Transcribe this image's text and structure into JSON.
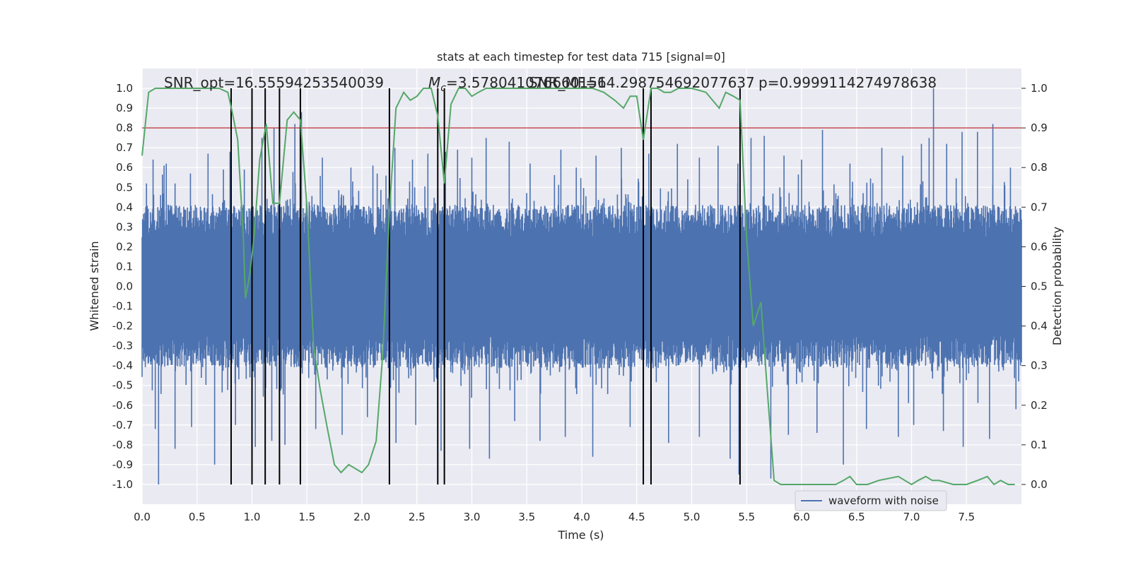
{
  "chart_data": {
    "type": "line",
    "title": "stats at each timestep for test data 715 [signal=0]",
    "xlabel": "Time (s)",
    "ylabel_left": "Whitened strain",
    "ylabel_right": "Detection probability",
    "xlim": [
      0.0,
      8.0
    ],
    "ylim_left": [
      -1.1,
      1.1
    ],
    "ylim_right": [
      -0.05,
      1.05
    ],
    "xticks": [
      "0.0",
      "0.5",
      "1.0",
      "1.5",
      "2.0",
      "2.5",
      "3.0",
      "3.5",
      "4.0",
      "4.5",
      "5.0",
      "5.5",
      "6.0",
      "6.5",
      "7.0",
      "7.5"
    ],
    "yticks_left": [
      "1.0",
      "0.9",
      "0.8",
      "0.7",
      "0.6",
      "0.5",
      "0.4",
      "0.3",
      "0.2",
      "0.1",
      "0.0",
      "-0.1",
      "-0.2",
      "-0.3",
      "-0.4",
      "-0.5",
      "-0.6",
      "-0.7",
      "-0.8",
      "-0.9",
      "-1.0"
    ],
    "yticks_right": [
      "1.0",
      "0.9",
      "0.8",
      "0.7",
      "0.6",
      "0.5",
      "0.4",
      "0.3",
      "0.2",
      "0.1",
      "0.0"
    ],
    "grid": true,
    "legend_placement": "lower-right",
    "annotations": {
      "snr_opt": "SNR_opt=16.55594253540039",
      "mc_symbol": "M",
      "mc_sub": "c",
      "mc_value": "=3.578041076660156",
      "snr_mf": "SNR_MF=14.298754692077637",
      "p_value": "p=0.9999114274978638"
    },
    "threshold": {
      "value": 0.9,
      "axis": "right",
      "color": "#c44e52"
    },
    "vertical_markers": [
      0.81,
      1.0,
      1.12,
      1.25,
      1.44,
      2.25,
      2.69,
      2.75,
      4.56,
      4.63,
      5.44
    ],
    "waveform": {
      "name": "waveform with noise",
      "color": "#4c72b0",
      "typical_amplitude": 0.33,
      "peaks_up": [
        [
          0.04,
          0.52
        ],
        [
          0.1,
          0.64
        ],
        [
          0.2,
          0.61
        ],
        [
          0.22,
          0.62
        ],
        [
          0.3,
          0.52
        ],
        [
          0.44,
          0.57
        ],
        [
          0.6,
          0.67
        ],
        [
          0.74,
          0.59
        ],
        [
          0.8,
          0.68
        ],
        [
          0.93,
          0.59
        ],
        [
          1.09,
          0.75
        ],
        [
          1.2,
          0.8
        ],
        [
          1.39,
          0.82
        ],
        [
          1.45,
          0.88
        ],
        [
          1.64,
          0.65
        ],
        [
          1.9,
          0.6
        ],
        [
          2.1,
          0.61
        ],
        [
          2.3,
          0.7
        ],
        [
          2.46,
          0.64
        ],
        [
          2.6,
          0.67
        ],
        [
          2.76,
          0.68
        ],
        [
          2.87,
          0.69
        ],
        [
          3.0,
          0.65
        ],
        [
          3.13,
          0.75
        ],
        [
          3.34,
          0.73
        ],
        [
          3.53,
          0.62
        ],
        [
          3.81,
          0.69
        ],
        [
          3.95,
          0.6
        ],
        [
          4.13,
          0.66
        ],
        [
          4.36,
          0.7
        ],
        [
          4.61,
          0.67
        ],
        [
          4.87,
          0.72
        ],
        [
          5.07,
          0.65
        ],
        [
          5.24,
          0.71
        ],
        [
          5.42,
          0.62
        ],
        [
          5.54,
          0.75
        ],
        [
          5.66,
          0.76
        ],
        [
          5.84,
          0.66
        ],
        [
          6.0,
          0.64
        ],
        [
          6.19,
          0.79
        ],
        [
          6.44,
          0.62
        ],
        [
          6.73,
          0.7
        ],
        [
          6.92,
          0.66
        ],
        [
          7.09,
          0.72
        ],
        [
          7.16,
          0.75
        ],
        [
          7.2,
          1.0
        ],
        [
          7.32,
          0.72
        ],
        [
          7.46,
          0.78
        ],
        [
          7.6,
          0.78
        ],
        [
          7.74,
          0.82
        ],
        [
          7.9,
          0.6
        ]
      ],
      "peaks_down": [
        [
          0.15,
          -1.0
        ],
        [
          0.12,
          -0.72
        ],
        [
          0.3,
          -0.82
        ],
        [
          0.45,
          -0.71
        ],
        [
          0.66,
          -0.9
        ],
        [
          0.85,
          -0.7
        ],
        [
          1.03,
          -0.81
        ],
        [
          1.18,
          -0.78
        ],
        [
          1.3,
          -0.8
        ],
        [
          1.58,
          -0.72
        ],
        [
          1.82,
          -0.75
        ],
        [
          2.05,
          -0.66
        ],
        [
          2.31,
          -0.79
        ],
        [
          2.49,
          -0.7
        ],
        [
          2.72,
          -0.83
        ],
        [
          2.98,
          -0.82
        ],
        [
          3.16,
          -0.87
        ],
        [
          3.39,
          -0.68
        ],
        [
          3.62,
          -0.78
        ],
        [
          3.85,
          -0.76
        ],
        [
          4.1,
          -0.86
        ],
        [
          4.44,
          -0.71
        ],
        [
          4.56,
          -0.76
        ],
        [
          4.79,
          -0.79
        ],
        [
          5.07,
          -0.76
        ],
        [
          5.35,
          -0.87
        ],
        [
          5.43,
          -0.95
        ],
        [
          5.72,
          -0.97
        ],
        [
          5.88,
          -0.75
        ],
        [
          6.14,
          -0.74
        ],
        [
          6.38,
          -0.9
        ],
        [
          6.59,
          -0.72
        ],
        [
          6.88,
          -0.76
        ],
        [
          7.02,
          -0.7
        ],
        [
          7.29,
          -0.73
        ],
        [
          7.47,
          -0.81
        ],
        [
          7.71,
          -0.77
        ],
        [
          7.95,
          -0.62
        ]
      ]
    },
    "detection_probability": {
      "color": "#55a868",
      "x": [
        0.0,
        0.06,
        0.12,
        0.2,
        0.3,
        0.4,
        0.5,
        0.6,
        0.7,
        0.78,
        0.82,
        0.87,
        0.92,
        0.94,
        0.98,
        1.02,
        1.07,
        1.13,
        1.19,
        1.25,
        1.32,
        1.38,
        1.44,
        1.5,
        1.56,
        1.62,
        1.68,
        1.75,
        1.81,
        1.88,
        1.94,
        2.0,
        2.06,
        2.13,
        2.19,
        2.25,
        2.31,
        2.38,
        2.44,
        2.5,
        2.56,
        2.63,
        2.69,
        2.75,
        2.81,
        2.88,
        2.94,
        3.0,
        3.06,
        3.13,
        3.19,
        3.25,
        3.5,
        3.75,
        3.9,
        4.0,
        4.1,
        4.2,
        4.3,
        4.38,
        4.44,
        4.5,
        4.56,
        4.63,
        4.69,
        4.75,
        4.81,
        4.88,
        5.0,
        5.13,
        5.19,
        5.25,
        5.31,
        5.38,
        5.44,
        5.5,
        5.56,
        5.63,
        5.69,
        5.75,
        5.81,
        6.0,
        6.2,
        6.31,
        6.38,
        6.44,
        6.5,
        6.6,
        6.7,
        6.88,
        6.94,
        7.0,
        7.06,
        7.13,
        7.19,
        7.25,
        7.38,
        7.5,
        7.6,
        7.69,
        7.75,
        7.81,
        7.88,
        7.94
      ],
      "y": [
        0.83,
        0.99,
        1.0,
        1.0,
        1.0,
        1.0,
        1.0,
        1.0,
        1.0,
        0.99,
        0.94,
        0.87,
        0.63,
        0.47,
        0.53,
        0.63,
        0.82,
        0.91,
        0.71,
        0.71,
        0.92,
        0.94,
        0.92,
        0.7,
        0.35,
        0.24,
        0.15,
        0.05,
        0.03,
        0.05,
        0.04,
        0.03,
        0.05,
        0.11,
        0.33,
        0.69,
        0.95,
        0.99,
        0.97,
        0.98,
        1.0,
        1.0,
        0.93,
        0.76,
        0.96,
        1.0,
        1.0,
        0.98,
        0.99,
        1.0,
        1.0,
        1.0,
        1.0,
        1.0,
        1.0,
        1.0,
        1.0,
        0.99,
        0.97,
        0.95,
        0.98,
        0.98,
        0.87,
        1.0,
        1.0,
        0.99,
        0.99,
        1.0,
        1.0,
        0.99,
        0.97,
        0.95,
        0.99,
        0.98,
        0.97,
        0.62,
        0.4,
        0.46,
        0.23,
        0.01,
        0.0,
        0.0,
        0.0,
        0.0,
        0.01,
        0.02,
        0.0,
        0.0,
        0.01,
        0.02,
        0.01,
        0.0,
        0.01,
        0.02,
        0.01,
        0.01,
        0.0,
        0.0,
        0.01,
        0.02,
        0.0,
        0.01,
        0.0,
        0.0
      ]
    }
  }
}
